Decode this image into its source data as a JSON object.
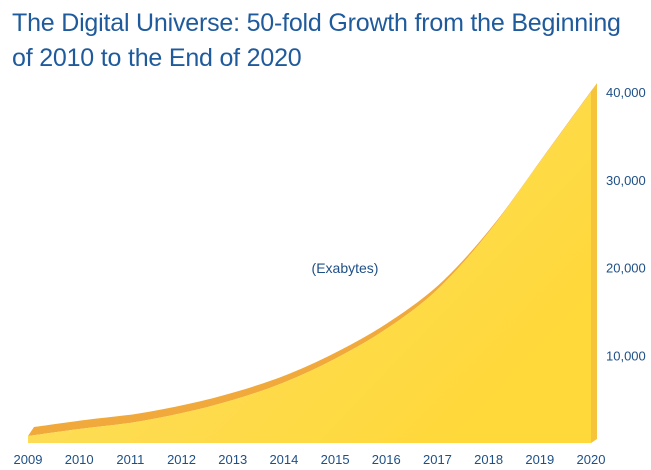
{
  "title": "The Digital Universe: 50-fold Growth from the Beginning of 2010 to the End of 2020",
  "chart_data": {
    "type": "area",
    "title": "The Digital Universe: 50-fold Growth from the Beginning of 2010 to the End of 2020",
    "xlabel": "",
    "ylabel": "",
    "annotation": "(Exabytes)",
    "categories": [
      "2009",
      "2010",
      "2011",
      "2012",
      "2013",
      "2014",
      "2015",
      "2016",
      "2017",
      "2018",
      "2019",
      "2020"
    ],
    "values": [
      800,
      1600,
      2300,
      3400,
      4900,
      6900,
      9600,
      13000,
      17500,
      24000,
      32000,
      40000
    ],
    "y_ticks": [
      10000,
      20000,
      30000,
      40000
    ],
    "y_tick_labels": [
      "10,000",
      "20,000",
      "30,000",
      "40,000"
    ],
    "ylim": [
      0,
      40000
    ],
    "y_axis_position": "right",
    "grid": false,
    "legend": "none",
    "colors": {
      "fill": "#fdd948",
      "fill_light": "#ffe987",
      "top_edge": "#f0a93a",
      "text": "#1e4f86",
      "title": "#1f5b9c"
    }
  }
}
